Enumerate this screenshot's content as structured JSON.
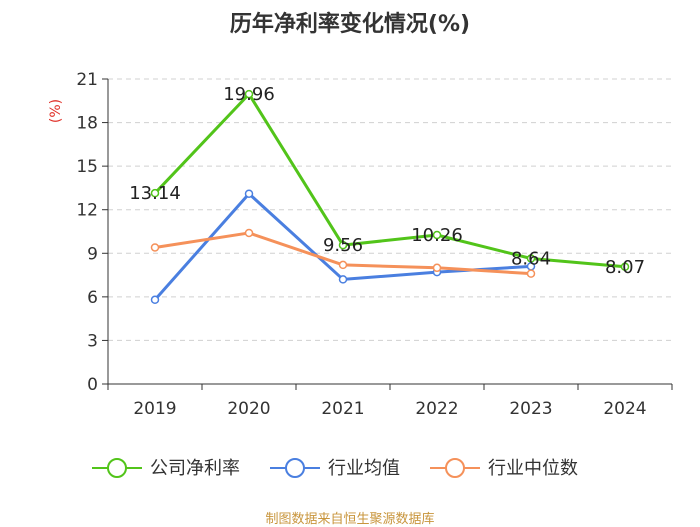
{
  "chart_data": {
    "type": "line",
    "title": "历年净利率变化情况(%)",
    "ylabel": "(%)",
    "xlabel": "",
    "categories": [
      "2019",
      "2020",
      "2021",
      "2022",
      "2023",
      "2024"
    ],
    "ylim": [
      0,
      21
    ],
    "yticks": [
      0,
      3,
      6,
      9,
      12,
      15,
      18,
      21
    ],
    "grid": true,
    "legend_position": "bottom",
    "series": [
      {
        "name": "公司净利率",
        "color": "#52c41a",
        "values": [
          13.14,
          19.96,
          9.56,
          10.26,
          8.64,
          8.07
        ],
        "labels": [
          "13.14",
          "19.96",
          "9.56",
          "10.26",
          "8.64",
          "8.07"
        ]
      },
      {
        "name": "行业均值",
        "color": "#4a7fe0",
        "values": [
          5.8,
          13.1,
          7.2,
          7.7,
          8.1,
          null
        ]
      },
      {
        "name": "行业中位数",
        "color": "#f5915a",
        "values": [
          9.4,
          10.4,
          8.2,
          8.0,
          7.6,
          null
        ]
      }
    ]
  },
  "source": "制图数据来自恒生聚源数据库"
}
